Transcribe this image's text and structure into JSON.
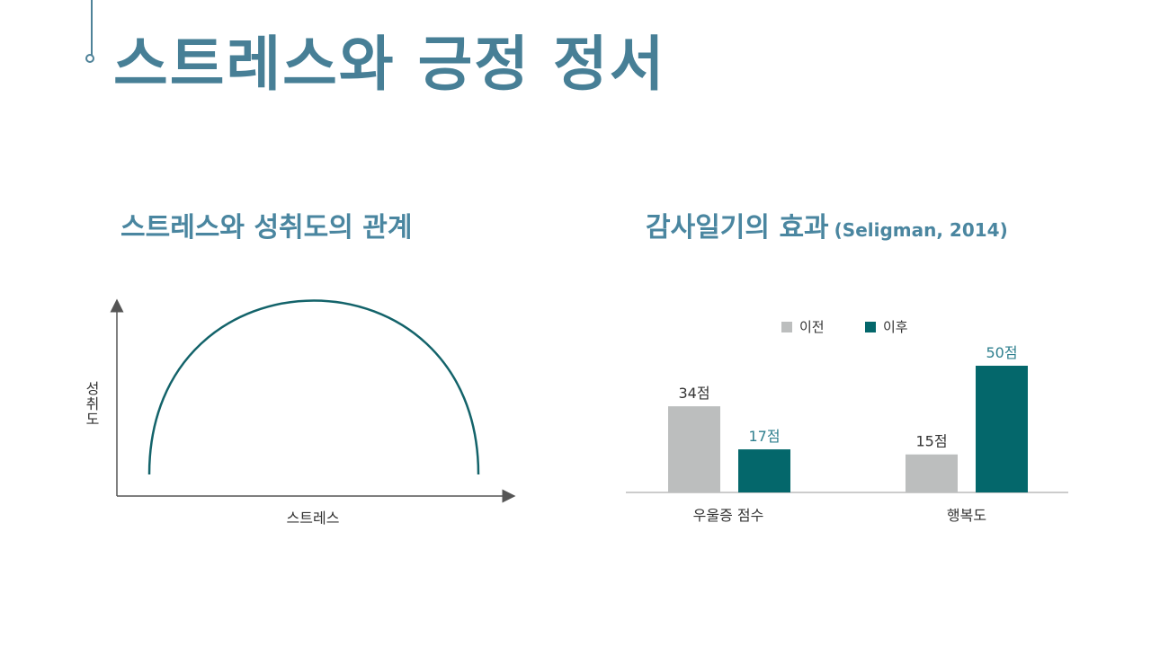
{
  "title": "스트레스와 긍정 정서",
  "colors": {
    "title": "#477f96",
    "subtitle": "#4a86a0",
    "curve": "#13636a",
    "before": "#bcbebe",
    "after": "#04676b",
    "after_label": "#2e7f8e"
  },
  "chart_data": [
    {
      "type": "line",
      "title": "스트레스와 성취도의 관계",
      "xlabel": "스트레스",
      "ylabel": "성취도",
      "shape": "inverted-u",
      "grid": false
    },
    {
      "type": "bar",
      "title": "감사일기의 효과",
      "citation": "(Seligman, 2014)",
      "categories": [
        "우울증 점수",
        "행복도"
      ],
      "series": [
        {
          "name": "이전",
          "values": [
            34,
            15
          ],
          "labels": [
            "34점",
            "15점"
          ]
        },
        {
          "name": "이후",
          "values": [
            17,
            50
          ],
          "labels": [
            "17점",
            "50점"
          ]
        }
      ],
      "ylim": [
        0,
        50
      ],
      "legend": "top-center",
      "grid": false
    }
  ]
}
